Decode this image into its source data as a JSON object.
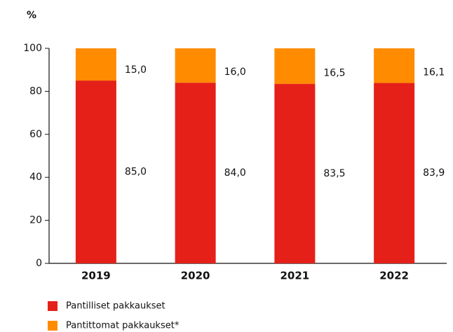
{
  "chart_data": {
    "type": "stacked_bar",
    "y_axis_label": "%",
    "categories": [
      "2019",
      "2020",
      "2021",
      "2022"
    ],
    "series": [
      {
        "name": "Pantilliset pakkaukset",
        "color": "#e52019",
        "values": [
          85.0,
          84.0,
          83.5,
          83.9
        ],
        "value_labels": [
          "85,0",
          "84,0",
          "83,5",
          "83,9"
        ]
      },
      {
        "name": "Pantittomat pakkaukset*",
        "color": "#ff8c00",
        "values": [
          15.0,
          16.0,
          16.5,
          16.1
        ],
        "value_labels": [
          "15,0",
          "16,0",
          "16,5",
          "16,1"
        ]
      }
    ],
    "ylim": [
      0,
      100
    ],
    "yticks": [
      0,
      20,
      40,
      60,
      80,
      100
    ],
    "grid": false,
    "legend": "bottom"
  }
}
